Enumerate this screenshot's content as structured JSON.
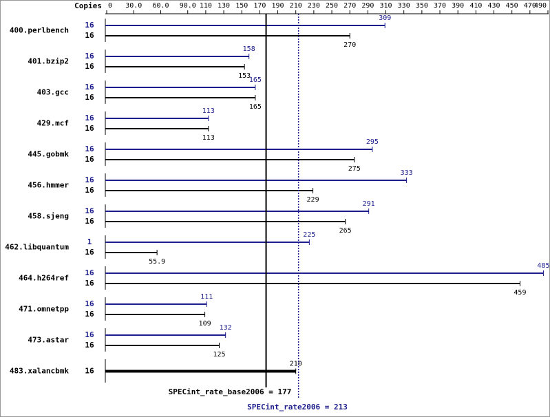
{
  "chart_data": {
    "type": "bar",
    "axis_label": "Copies",
    "categories": [
      "400.perlbench",
      "401.bzip2",
      "403.gcc",
      "429.mcf",
      "445.gobmk",
      "456.hmmer",
      "458.sjeng",
      "462.libquantum",
      "464.h264ref",
      "471.omnetpp",
      "473.astar",
      "483.xalancbmk"
    ],
    "series": [
      {
        "color": "#1c1c8c",
        "copies": [
          16,
          16,
          16,
          16,
          16,
          16,
          16,
          1,
          16,
          16,
          16,
          null
        ],
        "values": [
          309,
          158,
          165,
          113,
          295,
          333,
          291,
          225,
          485,
          111,
          132,
          null
        ]
      },
      {
        "color": "#000000",
        "copies": [
          16,
          16,
          16,
          16,
          16,
          16,
          16,
          16,
          16,
          16,
          16,
          16
        ],
        "values": [
          270,
          153,
          165,
          113,
          275,
          229,
          265,
          55.9,
          459,
          109,
          125,
          210
        ]
      }
    ],
    "xlim": [
      0,
      490
    ],
    "xticks": [
      0,
      {
        "value": 30,
        "label": "30.0"
      },
      {
        "value": 60,
        "label": "60.0"
      },
      {
        "value": 90,
        "label": "90.0"
      },
      110,
      130,
      150,
      170,
      190,
      210,
      230,
      250,
      270,
      290,
      310,
      330,
      350,
      370,
      390,
      410,
      430,
      450,
      470,
      490
    ],
    "reference_lines": [
      {
        "label": "SPECint_rate_base2006 =",
        "value": 177,
        "color": "#000000",
        "style": "solid"
      },
      {
        "label": "SPECint_rate2006 =",
        "value": 213,
        "color": "#1c1c8c",
        "style": "dotted"
      }
    ]
  }
}
